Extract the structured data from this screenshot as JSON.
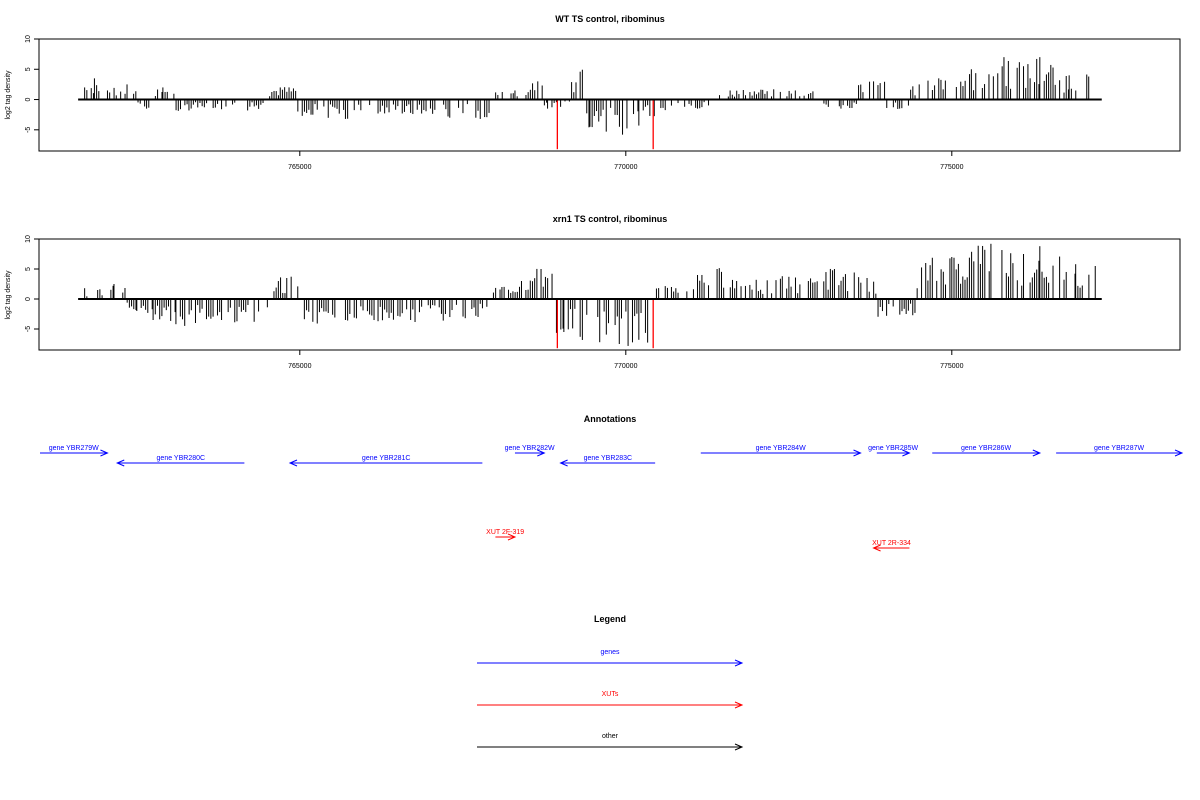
{
  "chart_data": [
    {
      "type": "bar",
      "title": "WT TS control, ribominus",
      "xlabel": "",
      "ylabel": "log2 tag density",
      "xlim": [
        761000,
        778500
      ],
      "ylim": [
        -8.5,
        10
      ],
      "x_ticks": [
        765000,
        770000,
        775000
      ],
      "x_tick_labels": [
        "765000",
        "770000",
        "775000"
      ],
      "y_ticks": [
        -5,
        0,
        5,
        10
      ],
      "y_tick_labels": [
        "-5",
        "0",
        "5",
        "10"
      ],
      "baseline": {
        "x": [
          761600,
          777300
        ],
        "y": 0
      },
      "series": [
        {
          "color": "#000000",
          "values": [
            [
              761700,
              2.0
            ],
            [
              761850,
              3.5
            ],
            [
              762050,
              1.5
            ],
            [
              762350,
              2.5
            ],
            [
              762650,
              -1.5
            ],
            [
              762900,
              2.0
            ],
            [
              763300,
              -1.8
            ],
            [
              763800,
              -1.6
            ],
            [
              764200,
              -1.8
            ],
            [
              764700,
              2.0
            ],
            [
              765200,
              -2.5
            ],
            [
              765700,
              -3.2
            ],
            [
              766200,
              -2.3
            ],
            [
              766700,
              -2.2
            ],
            [
              767300,
              -3.0
            ],
            [
              767700,
              -3.0
            ],
            [
              768300,
              1.5
            ],
            [
              768650,
              3.0
            ],
            [
              768800,
              -1.5
            ],
            [
              769000,
              -1.2
            ],
            [
              769300,
              4.6
            ],
            [
              769450,
              -4.5
            ],
            [
              769700,
              -5.3
            ],
            [
              769950,
              -5.8
            ],
            [
              770200,
              -4.3
            ],
            [
              770700,
              -1.0
            ],
            [
              771100,
              -1.5
            ],
            [
              771600,
              1.5
            ],
            [
              772100,
              1.6
            ],
            [
              772600,
              1.5
            ],
            [
              773300,
              -1.5
            ],
            [
              773800,
              3.0
            ],
            [
              774200,
              -1.5
            ],
            [
              774500,
              2.5
            ],
            [
              774800,
              3.5
            ],
            [
              775300,
              5.0
            ],
            [
              775800,
              7.0
            ],
            [
              776100,
              5.5
            ],
            [
              776350,
              7.0
            ],
            [
              776800,
              4.0
            ],
            [
              777100,
              3.8
            ]
          ]
        },
        {
          "color": "#ff0000",
          "values": [
            [
              768950,
              -8.2
            ],
            [
              770420,
              -8.2
            ]
          ]
        }
      ]
    },
    {
      "type": "bar",
      "title": "xrn1 TS control, ribominus",
      "xlabel": "",
      "ylabel": "log2 tag density",
      "xlim": [
        761000,
        778500
      ],
      "ylim": [
        -8.5,
        10
      ],
      "x_ticks": [
        765000,
        770000,
        775000
      ],
      "x_tick_labels": [
        "765000",
        "770000",
        "775000"
      ],
      "y_ticks": [
        -5,
        0,
        5,
        10
      ],
      "y_tick_labels": [
        "-5",
        "0",
        "5",
        "10"
      ],
      "baseline": {
        "x": [
          761600,
          777300
        ],
        "y": 0
      },
      "series": [
        {
          "color": "#000000",
          "values": [
            [
              761700,
              1.8
            ],
            [
              761900,
              1.5
            ],
            [
              762150,
              2.5
            ],
            [
              762500,
              -2.0
            ],
            [
              762750,
              -3.5
            ],
            [
              763100,
              -4.2
            ],
            [
              763400,
              -4.0
            ],
            [
              763800,
              -3.5
            ],
            [
              764300,
              -3.8
            ],
            [
              764800,
              3.5
            ],
            [
              765200,
              -3.8
            ],
            [
              765700,
              -3.5
            ],
            [
              766200,
              -3.7
            ],
            [
              766700,
              -3.5
            ],
            [
              767200,
              -3.6
            ],
            [
              767700,
              -2.8
            ],
            [
              768100,
              2.0
            ],
            [
              768400,
              3.0
            ],
            [
              768700,
              5.0
            ],
            [
              769050,
              -5.5
            ],
            [
              769300,
              -6.3
            ],
            [
              769600,
              -7.2
            ],
            [
              769900,
              -7.5
            ],
            [
              770200,
              -6.8
            ],
            [
              770700,
              2.0
            ],
            [
              771100,
              4.0
            ],
            [
              771400,
              5.0
            ],
            [
              771700,
              3.0
            ],
            [
              772000,
              3.2
            ],
            [
              772400,
              3.8
            ],
            [
              772800,
              3.0
            ],
            [
              773200,
              5.0
            ],
            [
              773700,
              3.5
            ],
            [
              774000,
              -2.8
            ],
            [
              774300,
              -2.5
            ],
            [
              774600,
              6.0
            ],
            [
              775000,
              7.0
            ],
            [
              775600,
              9.2
            ],
            [
              776100,
              7.5
            ],
            [
              776350,
              8.8
            ],
            [
              776900,
              5.8
            ],
            [
              777200,
              5.5
            ]
          ]
        },
        {
          "color": "#ff0000",
          "values": [
            [
              768950,
              -8.2
            ],
            [
              770420,
              -8.2
            ]
          ]
        }
      ]
    }
  ],
  "annotations": {
    "title": "Annotations",
    "genes": [
      {
        "label": "gene YBR279W",
        "start": 761000,
        "end": 762050,
        "strand": "+",
        "row": 0
      },
      {
        "label": "gene YBR280C",
        "start": 762200,
        "end": 764150,
        "strand": "-",
        "row": 1
      },
      {
        "label": "gene YBR281C",
        "start": 764850,
        "end": 767800,
        "strand": "-",
        "row": 1
      },
      {
        "label": "gene YBR282W",
        "start": 768300,
        "end": 768750,
        "strand": "+",
        "row": 0
      },
      {
        "label": "gene YBR283C",
        "start": 769000,
        "end": 770450,
        "strand": "-",
        "row": 1
      },
      {
        "label": "gene YBR284W",
        "start": 771150,
        "end": 773600,
        "strand": "+",
        "row": 0
      },
      {
        "label": "gene YBR285W",
        "start": 773850,
        "end": 774350,
        "strand": "+",
        "row": 0
      },
      {
        "label": "gene YBR286W",
        "start": 774700,
        "end": 776350,
        "strand": "+",
        "row": 0
      },
      {
        "label": "gene YBR287W",
        "start": 776600,
        "end": 778550,
        "strand": "+",
        "row": 0
      }
    ],
    "xuts": [
      {
        "label": "XUT 2F-319",
        "start": 768000,
        "end": 768300,
        "strand": "+",
        "row": 0
      },
      {
        "label": "XUT 2R-334",
        "start": 773800,
        "end": 774350,
        "strand": "-",
        "row": 1
      }
    ]
  },
  "legend": {
    "title": "Legend",
    "items": [
      {
        "label": "genes",
        "color": "#0000ff"
      },
      {
        "label": "XUTs",
        "color": "#ff0000"
      },
      {
        "label": "other",
        "color": "#000000"
      }
    ]
  }
}
